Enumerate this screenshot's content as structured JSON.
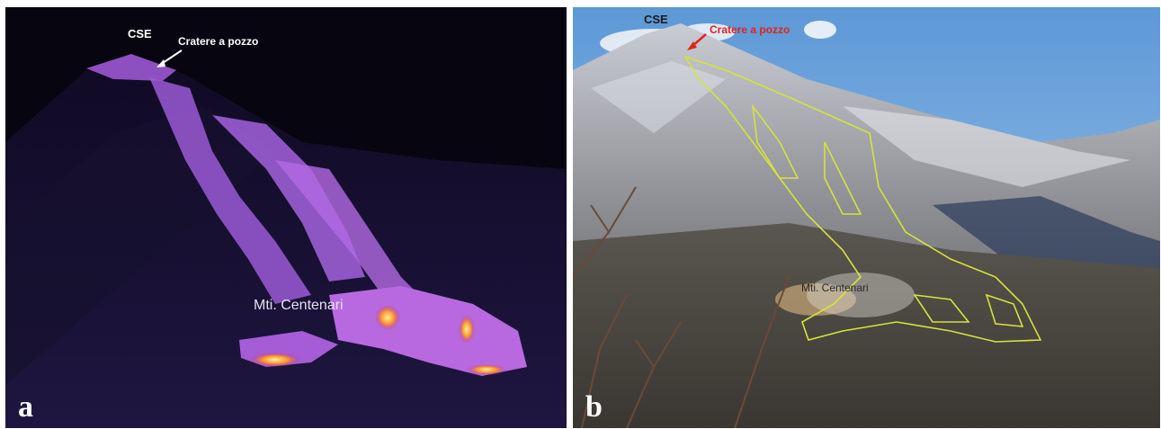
{
  "panels": [
    {
      "letter": "a",
      "labels": {
        "summit": "CSE",
        "crater": "Cratere a pozzo",
        "cones": "Mti. Centenari"
      }
    },
    {
      "letter": "b",
      "labels": {
        "summit": "CSE",
        "crater": "Cratere a pozzo",
        "cones": "Mti. Centenari"
      }
    }
  ],
  "colors": {
    "thermal_background": "#0a0716",
    "lava_hot": "#ffd24a",
    "lava_warm": "#c84ad8",
    "outline": "#d8e23a",
    "crater_label_b": "#e0241c",
    "sky": "#6fa8de"
  }
}
